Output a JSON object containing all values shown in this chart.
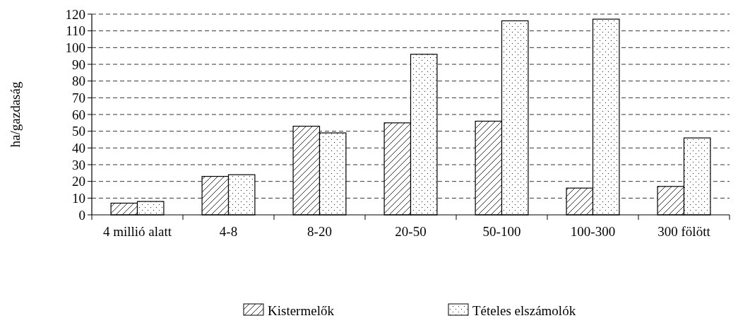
{
  "chart_data": {
    "type": "bar",
    "ylabel": "ha/gazdaság",
    "categories": [
      "4 millió alatt",
      "4-8",
      "8-20",
      "20-50",
      "50-100",
      "100-300",
      "300 fölött"
    ],
    "series": [
      {
        "name": "Kistermelők",
        "color": "#000000",
        "values": [
          7,
          23,
          53,
          55,
          56,
          16,
          17
        ]
      },
      {
        "name": "Tételes elszámolók",
        "color": "#000000",
        "values": [
          8,
          24,
          49,
          96,
          116,
          117,
          46
        ]
      }
    ],
    "ylim": [
      0,
      120
    ],
    "yticks": [
      0,
      10,
      20,
      30,
      40,
      50,
      60,
      70,
      80,
      90,
      100,
      110,
      120
    ],
    "grid": "y",
    "legend": "bottom"
  }
}
